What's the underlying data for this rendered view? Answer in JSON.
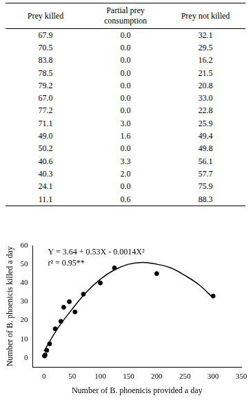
{
  "table": {
    "columns": [
      "Prey killed",
      "Partial prey consumption",
      "Prey not killed"
    ],
    "rows": [
      [
        67.9,
        0.0,
        32.1
      ],
      [
        70.5,
        0.0,
        29.5
      ],
      [
        83.8,
        0.0,
        16.2
      ],
      [
        78.5,
        0.0,
        21.5
      ],
      [
        79.2,
        0.0,
        20.8
      ],
      [
        67.0,
        0.0,
        33.0
      ],
      [
        77.2,
        0.0,
        22.8
      ],
      [
        71.1,
        3.0,
        25.9
      ],
      [
        49.0,
        1.6,
        49.4
      ],
      [
        50.2,
        0.0,
        49.8
      ],
      [
        40.6,
        3.3,
        56.1
      ],
      [
        40.3,
        2.0,
        57.7
      ],
      [
        24.1,
        0.0,
        75.9
      ],
      [
        11.1,
        0.6,
        88.3
      ]
    ]
  },
  "chart_data": {
    "type": "scatter",
    "x_label": "Number of B. phoenicis provided a day",
    "y_label": "Number of B. phoenicis killed a day",
    "annotations": [
      "Y = 3.64 + 0.53X - 0.0014X²",
      "r² = 0.95**"
    ],
    "series": [
      {
        "type": "scatter",
        "color": "#000000",
        "marker": "circle",
        "x": [
          1,
          2,
          5,
          10,
          20,
          30,
          35,
          45,
          55,
          70,
          100,
          125,
          200,
          300
        ],
        "values": [
          1,
          1.5,
          4,
          7.5,
          15.5,
          19.5,
          27,
          30,
          24.5,
          34,
          40,
          48,
          45,
          33
        ]
      },
      {
        "type": "line",
        "color": "#000000",
        "line_style": "solid",
        "x": [
          0,
          25,
          50,
          75,
          100,
          125,
          150,
          175,
          200,
          225,
          250,
          275,
          300
        ],
        "values": [
          3.6,
          16,
          26,
          35,
          42,
          47,
          50,
          51,
          50,
          48,
          44,
          39,
          32
        ]
      }
    ],
    "xlim": [
      -20,
      350
    ],
    "xticks": [
      0,
      50,
      100,
      150,
      200,
      250,
      300,
      350
    ],
    "ylim": [
      -5,
      60
    ],
    "yticks": [
      0,
      10,
      20,
      30,
      40,
      50,
      60
    ],
    "grid": false
  }
}
